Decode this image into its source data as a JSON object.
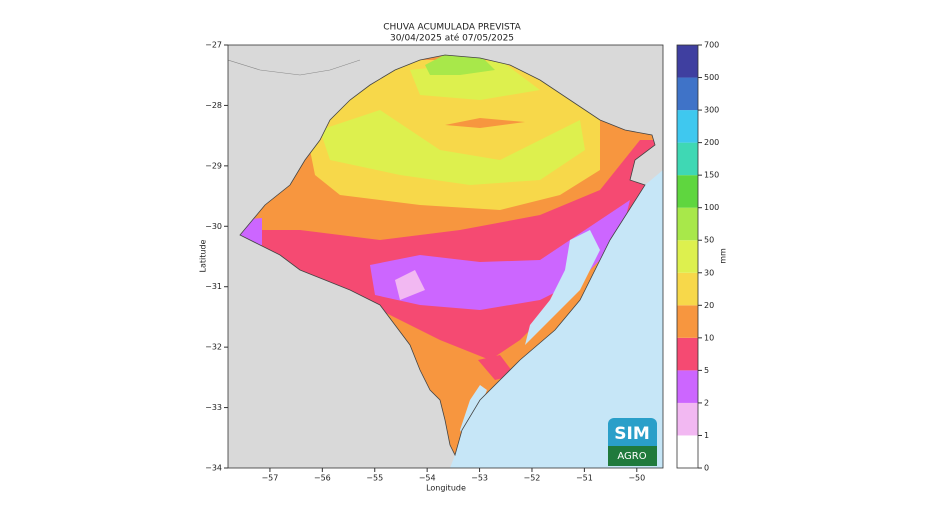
{
  "chart_data": {
    "type": "map",
    "title": "CHUVA ACUMULADA PREVISTA",
    "subtitle": "30/04/2025 até 07/05/2025",
    "x_label": "Longitude",
    "y_label": "Latitude",
    "xlim": [
      -57.8,
      -49.5
    ],
    "ylim": [
      -34,
      -27
    ],
    "xticks": [
      {
        "value": -57,
        "label": "−57"
      },
      {
        "value": -56,
        "label": "−56"
      },
      {
        "value": -55,
        "label": "−55"
      },
      {
        "value": -54,
        "label": "−54"
      },
      {
        "value": -53,
        "label": "−53"
      },
      {
        "value": -52,
        "label": "−52"
      },
      {
        "value": -51,
        "label": "−51"
      },
      {
        "value": -50,
        "label": "−50"
      }
    ],
    "yticks": [
      {
        "value": -34,
        "label": "−34"
      },
      {
        "value": -33,
        "label": "−33"
      },
      {
        "value": -32,
        "label": "−32"
      },
      {
        "value": -31,
        "label": "−31"
      },
      {
        "value": -30,
        "label": "−30"
      },
      {
        "value": -29,
        "label": "−29"
      },
      {
        "value": -28,
        "label": "−28"
      },
      {
        "value": -27,
        "label": "−27"
      }
    ],
    "colorbar": {
      "label": "mm",
      "ticks": [
        0,
        1,
        2,
        5,
        10,
        20,
        30,
        50,
        100,
        150,
        200,
        300,
        500,
        700
      ],
      "colors": [
        "#ffffff",
        "#f2b8f2",
        "#cc66ff",
        "#f54a72",
        "#f7963f",
        "#f7d84a",
        "#ddf04e",
        "#a8e84a",
        "#5fd63f",
        "#3fd8b4",
        "#3fc8ef",
        "#3f73c8",
        "#3f3fa0"
      ]
    },
    "logo": {
      "top": "SIM",
      "bottom": "AGRO"
    }
  }
}
